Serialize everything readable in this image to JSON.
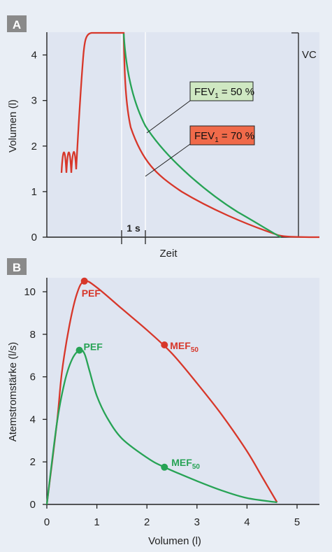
{
  "colors": {
    "background": "#e9eef5",
    "plot_bg": "#dfe5f1",
    "badge_bg": "#8a8a8a",
    "red": "#d7372a",
    "green": "#27a355",
    "label_green_bg": "#cfe8c2",
    "label_red_bg": "#f06a4a"
  },
  "chart_data": [
    {
      "panel": "A",
      "type": "line",
      "ylabel": "Volumen (l)",
      "xlabel": "Zeit",
      "ylim": [
        0,
        4.5
      ],
      "yticks": [
        0,
        1,
        2,
        3,
        4
      ],
      "scale_bar_label": "1 s",
      "vc_label": "VC",
      "series": [
        {
          "label": "FEV1 = 50 %",
          "label_parts": [
            "FEV",
            "1",
            " = 50 %"
          ],
          "color": "green"
        },
        {
          "label": "FEV1 = 70 %",
          "label_parts": [
            "FEV",
            "1",
            " = 70 %"
          ],
          "color": "red"
        }
      ]
    },
    {
      "panel": "B",
      "type": "line",
      "xlabel": "Volumen (l)",
      "ylabel": "Atemstromstärke (l/s)",
      "xlim": [
        0,
        5
      ],
      "ylim": [
        0,
        10.5
      ],
      "xticks": [
        0,
        1,
        2,
        3,
        4,
        5
      ],
      "yticks": [
        0,
        2,
        4,
        6,
        8,
        10
      ],
      "series": [
        {
          "color": "red",
          "x": [
            0,
            0.2,
            0.3,
            0.45,
            0.6,
            0.75,
            1.0,
            1.5,
            2.0,
            2.5,
            3.0,
            3.5,
            4.0,
            4.3,
            4.6
          ],
          "y": [
            0,
            3.8,
            6.2,
            8.4,
            9.9,
            10.5,
            10.2,
            9.2,
            8.2,
            7.1,
            5.7,
            4.2,
            2.5,
            1.3,
            0.1
          ],
          "points": [
            {
              "label": "PEF",
              "x": 0.75,
              "y": 10.5
            },
            {
              "label": "MEF",
              "sub": "50",
              "x": 2.35,
              "y": 7.5
            }
          ]
        },
        {
          "color": "green",
          "x": [
            0,
            0.2,
            0.35,
            0.5,
            0.65,
            0.75,
            0.85,
            1.0,
            1.2,
            1.5,
            2.0,
            2.35,
            3.0,
            3.5,
            4.0,
            4.6
          ],
          "y": [
            0,
            3.8,
            5.7,
            6.8,
            7.25,
            7.1,
            6.3,
            5.1,
            4.1,
            3.1,
            2.2,
            1.75,
            1.1,
            0.65,
            0.3,
            0.1
          ],
          "points": [
            {
              "label": "PEF",
              "x": 0.65,
              "y": 7.25
            },
            {
              "label": "MEF",
              "sub": "50",
              "x": 2.35,
              "y": 1.75
            }
          ]
        }
      ]
    }
  ]
}
